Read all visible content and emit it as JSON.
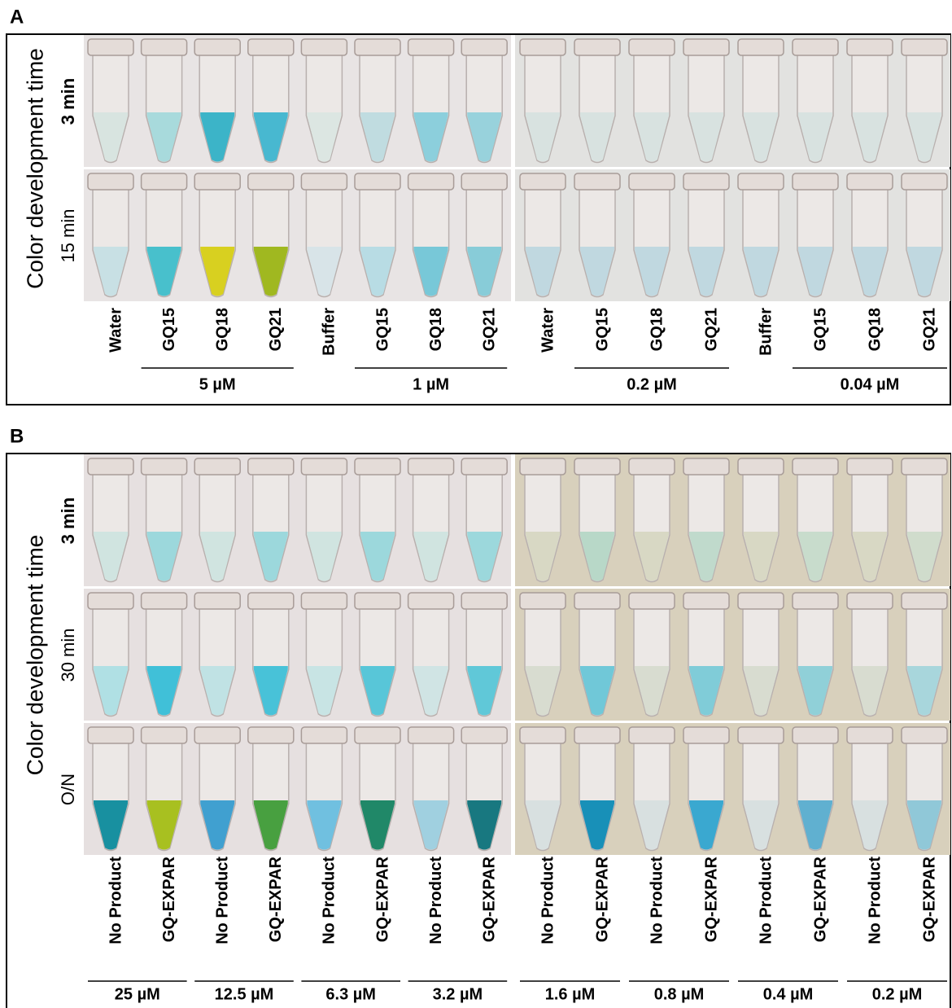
{
  "panels": [
    {
      "label": "A",
      "y_title": "Color development time",
      "rows": [
        "3 min",
        "15 min"
      ],
      "tube_labels": [
        "Water",
        "GQ15",
        "GQ18",
        "GQ21",
        "Buffer",
        "GQ15",
        "GQ18",
        "GQ21",
        "Water",
        "GQ15",
        "GQ18",
        "GQ21",
        "Buffer",
        "GQ15",
        "GQ18",
        "GQ21"
      ],
      "groups": [
        "5 µM",
        "1 µM",
        "0.2 µM",
        "0.04 µM"
      ]
    },
    {
      "label": "B",
      "y_title": "Color development time",
      "rows": [
        "3 min",
        "30 min",
        "O/N"
      ],
      "tube_labels": [
        "No Product",
        "GQ-EXPAR",
        "No Product",
        "GQ-EXPAR",
        "No Product",
        "GQ-EXPAR",
        "No Product",
        "GQ-EXPAR",
        "No Product",
        "GQ-EXPAR",
        "No Product",
        "GQ-EXPAR",
        "No Product",
        "GQ-EXPAR",
        "No Product",
        "GQ-EXPAR"
      ],
      "groups": [
        "25 µM",
        "12.5 µM",
        "6.3 µM",
        "3.2 µM",
        "1.6 µM",
        "0.8 µM",
        "0.4 µM",
        "0.2 µM"
      ]
    }
  ]
}
